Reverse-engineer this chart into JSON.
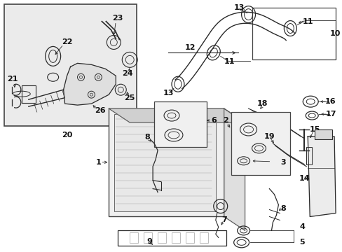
{
  "fig_width": 4.89,
  "fig_height": 3.6,
  "dpi": 100,
  "bg": "#ffffff",
  "lc": "#2a2a2a",
  "gray": "#e8e8e8",
  "gray2": "#d8d8d8",
  "box_ec": "#444444"
}
